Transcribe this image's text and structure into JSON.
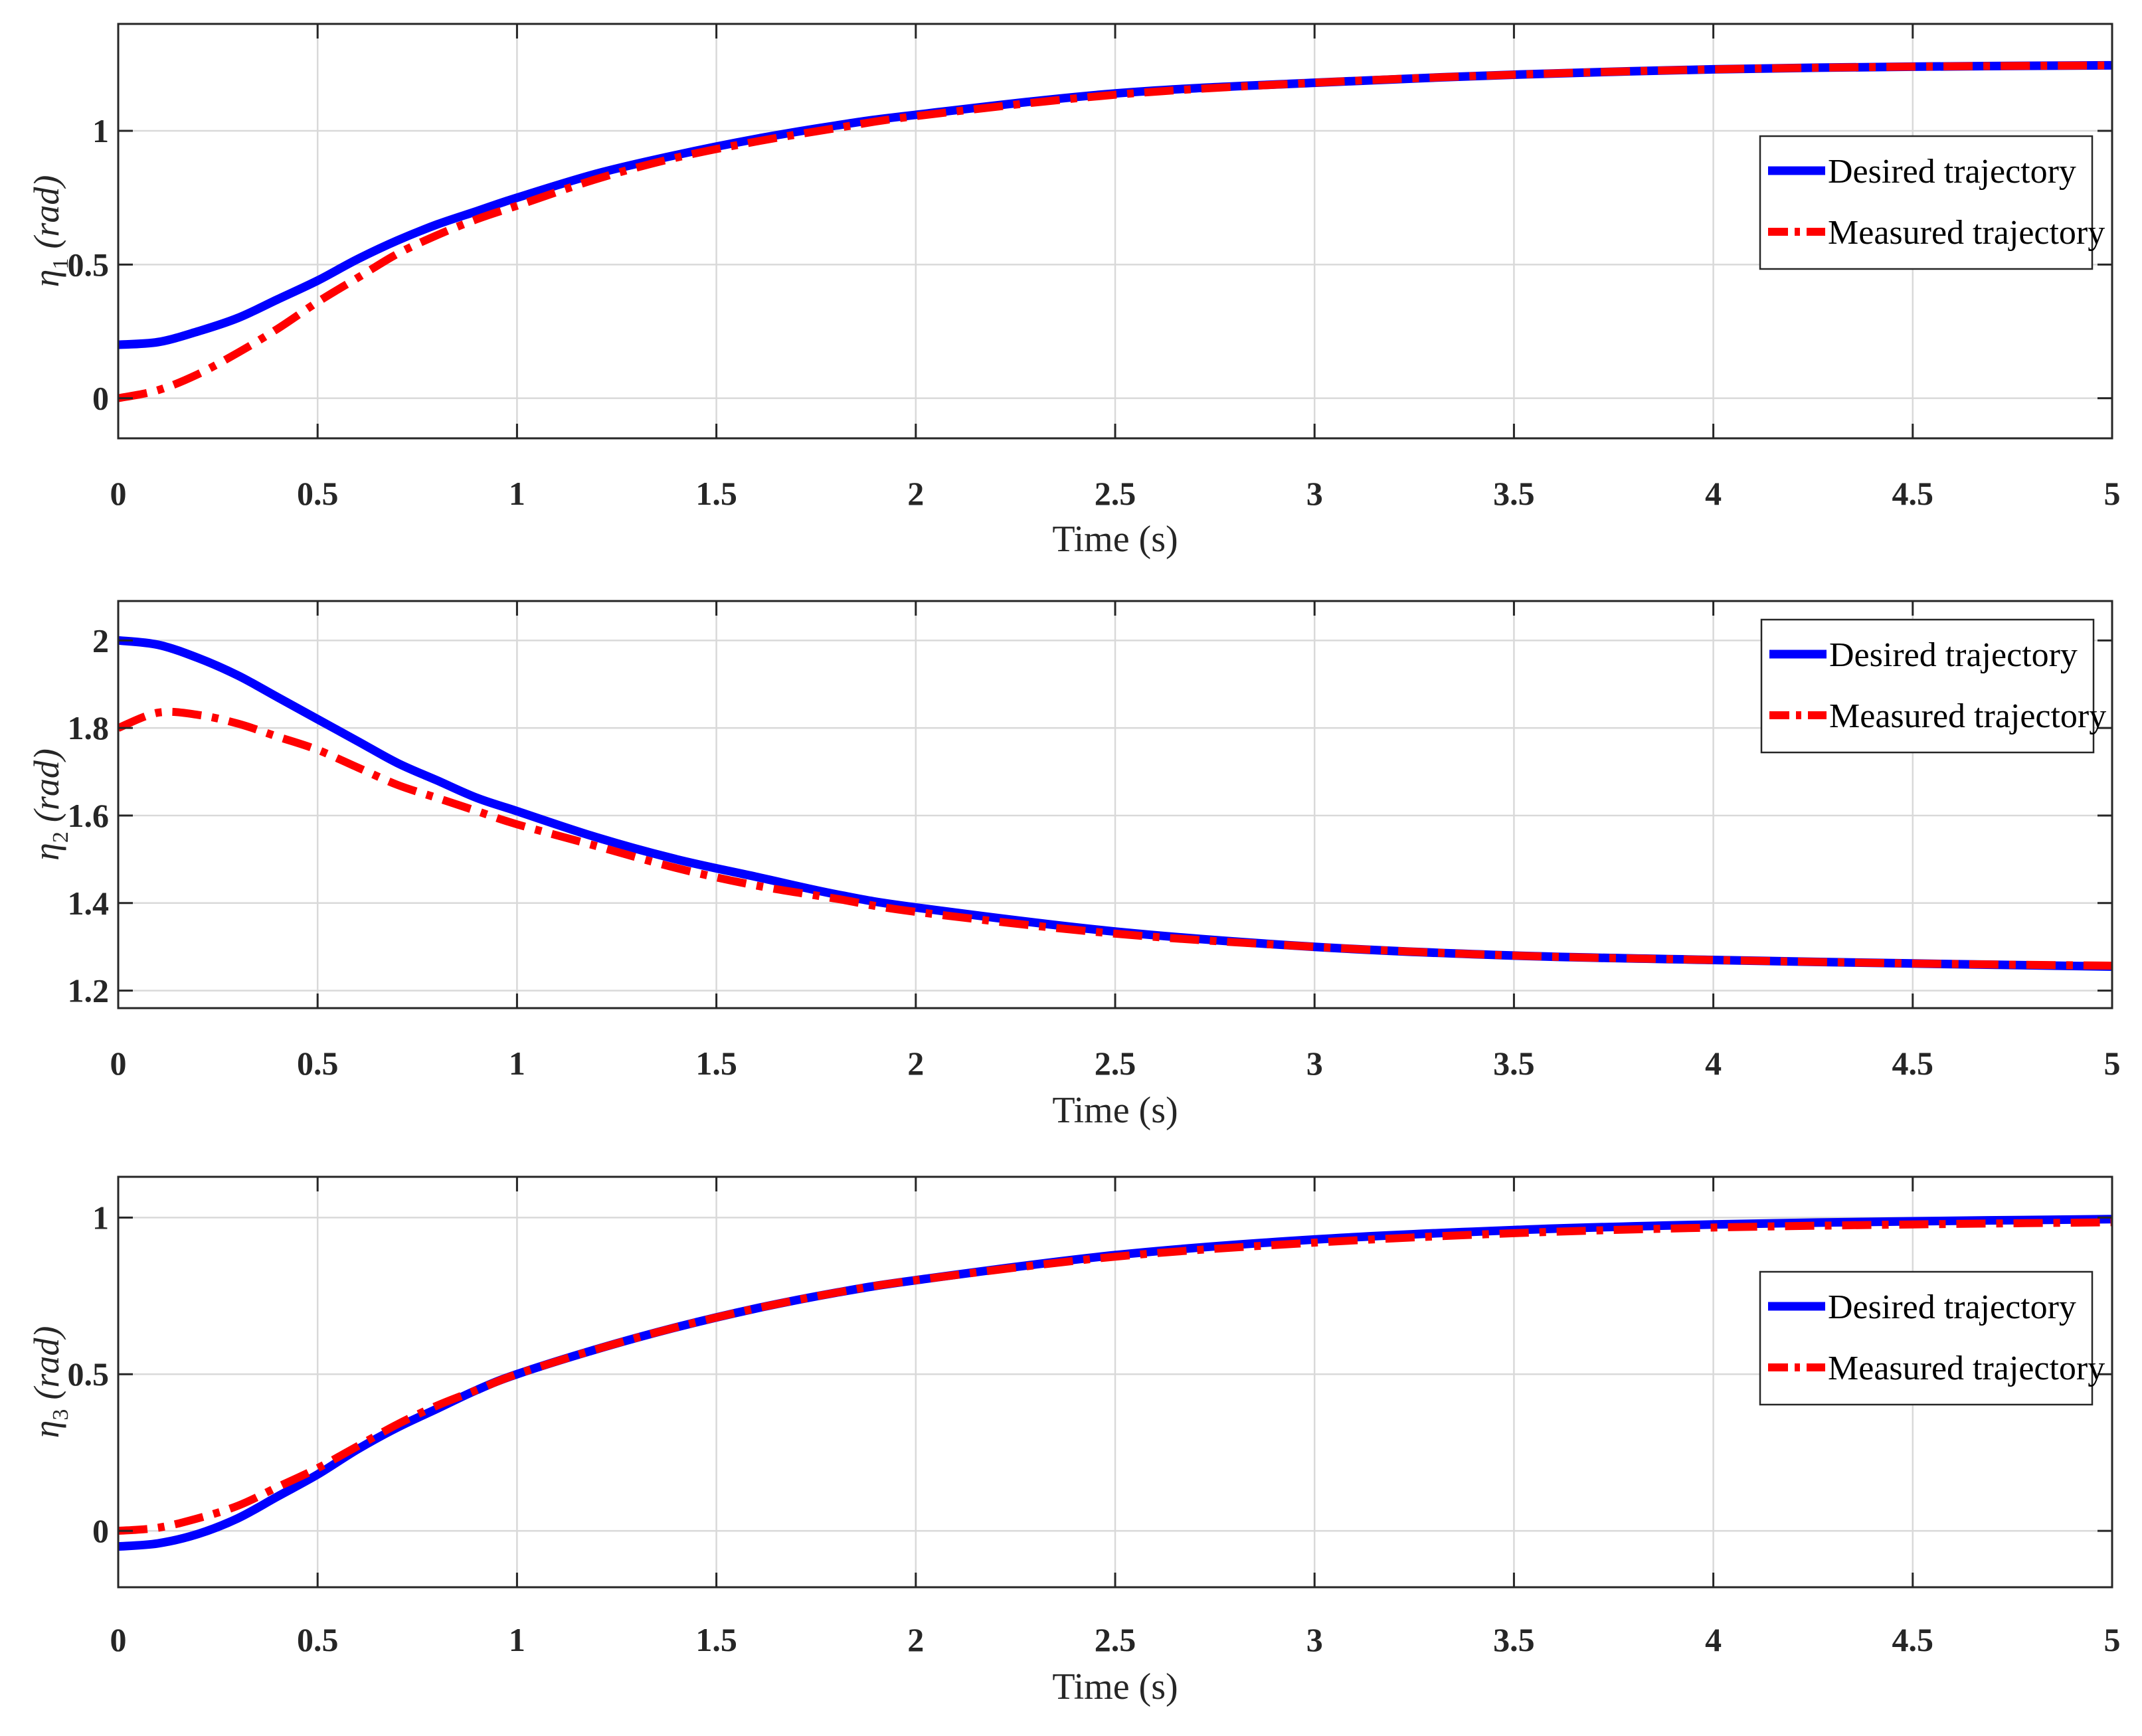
{
  "chart_data": [
    {
      "type": "line",
      "xlabel": "Time (s)",
      "ylabel": "η1 (rad)",
      "ylabel_symbol": "η",
      "ylabel_sub": "1",
      "ylabel_unit": "(rad)",
      "xlim": [
        0,
        5
      ],
      "ylim": [
        -0.15,
        1.4
      ],
      "xticks": [
        0,
        0.5,
        1,
        1.5,
        2,
        2.5,
        3,
        3.5,
        4,
        4.5,
        5
      ],
      "xtick_labels": [
        "0",
        "0.5",
        "1",
        "1.5",
        "2",
        "2.5",
        "3",
        "3.5",
        "4",
        "4.5",
        "5"
      ],
      "yticks": [
        0,
        0.5,
        1
      ],
      "ytick_labels": [
        "0",
        "0.5",
        "1"
      ],
      "grid": true,
      "legend_position": "right",
      "series": [
        {
          "name": "Desired trajectory",
          "style": "solid",
          "color": "#0000ff",
          "x": [
            0,
            0.1,
            0.2,
            0.3,
            0.4,
            0.5,
            0.6,
            0.7,
            0.8,
            0.9,
            1.0,
            1.2,
            1.4,
            1.6,
            1.8,
            2.0,
            2.5,
            3.0,
            3.5,
            4.0,
            4.5,
            5.0
          ],
          "y": [
            0.2,
            0.21,
            0.25,
            0.3,
            0.37,
            0.44,
            0.52,
            0.59,
            0.65,
            0.7,
            0.75,
            0.84,
            0.91,
            0.97,
            1.02,
            1.06,
            1.14,
            1.18,
            1.21,
            1.23,
            1.24,
            1.245
          ]
        },
        {
          "name": "Measured trajectory",
          "style": "dashdot",
          "color": "#ff0000",
          "x": [
            0,
            0.1,
            0.2,
            0.3,
            0.4,
            0.5,
            0.6,
            0.7,
            0.8,
            0.9,
            1.0,
            1.2,
            1.4,
            1.6,
            1.8,
            2.0,
            2.5,
            3.0,
            3.5,
            4.0,
            4.5,
            5.0
          ],
          "y": [
            0.0,
            0.03,
            0.09,
            0.17,
            0.26,
            0.36,
            0.45,
            0.54,
            0.61,
            0.67,
            0.72,
            0.82,
            0.9,
            0.96,
            1.01,
            1.055,
            1.135,
            1.18,
            1.21,
            1.23,
            1.24,
            1.245
          ]
        }
      ]
    },
    {
      "type": "line",
      "xlabel": "Time (s)",
      "ylabel": "η2 (rad)",
      "ylabel_symbol": "η",
      "ylabel_sub": "2",
      "ylabel_unit": "(rad)",
      "xlim": [
        0,
        5
      ],
      "ylim": [
        1.16,
        2.09
      ],
      "xticks": [
        0,
        0.5,
        1,
        1.5,
        2,
        2.5,
        3,
        3.5,
        4,
        4.5,
        5
      ],
      "xtick_labels": [
        "0",
        "0.5",
        "1",
        "1.5",
        "2",
        "2.5",
        "3",
        "3.5",
        "4",
        "4.5",
        "5"
      ],
      "yticks": [
        1.2,
        1.4,
        1.6,
        1.8,
        2.0
      ],
      "ytick_labels": [
        "1.2",
        "1.4",
        "1.6",
        "1.8",
        "2"
      ],
      "grid": true,
      "legend_position": "top-right",
      "series": [
        {
          "name": "Desired trajectory",
          "style": "solid",
          "color": "#0000ff",
          "x": [
            0,
            0.1,
            0.2,
            0.3,
            0.4,
            0.5,
            0.6,
            0.7,
            0.8,
            0.9,
            1.0,
            1.2,
            1.4,
            1.6,
            1.8,
            2.0,
            2.5,
            3.0,
            3.5,
            4.0,
            4.5,
            5.0
          ],
          "y": [
            2.0,
            1.99,
            1.96,
            1.92,
            1.87,
            1.82,
            1.77,
            1.72,
            1.68,
            1.64,
            1.61,
            1.55,
            1.5,
            1.46,
            1.42,
            1.39,
            1.335,
            1.3,
            1.28,
            1.27,
            1.262,
            1.255
          ]
        },
        {
          "name": "Measured trajectory",
          "style": "dashdot",
          "color": "#ff0000",
          "x": [
            0,
            0.1,
            0.2,
            0.3,
            0.4,
            0.5,
            0.6,
            0.7,
            0.8,
            0.9,
            1.0,
            1.2,
            1.4,
            1.6,
            1.8,
            2.0,
            2.5,
            3.0,
            3.5,
            4.0,
            4.5,
            5.0
          ],
          "y": [
            1.8,
            1.835,
            1.83,
            1.81,
            1.78,
            1.75,
            1.71,
            1.67,
            1.64,
            1.61,
            1.58,
            1.53,
            1.48,
            1.44,
            1.41,
            1.38,
            1.33,
            1.3,
            1.28,
            1.27,
            1.262,
            1.257
          ]
        }
      ]
    },
    {
      "type": "line",
      "xlabel": "Time (s)",
      "ylabel": "η3 (rad)",
      "ylabel_symbol": "η",
      "ylabel_sub": "3",
      "ylabel_unit": "(rad)",
      "xlim": [
        0,
        5
      ],
      "ylim": [
        -0.18,
        1.13
      ],
      "xticks": [
        0,
        0.5,
        1,
        1.5,
        2,
        2.5,
        3,
        3.5,
        4,
        4.5,
        5
      ],
      "xtick_labels": [
        "0",
        "0.5",
        "1",
        "1.5",
        "2",
        "2.5",
        "3",
        "3.5",
        "4",
        "4.5",
        "5"
      ],
      "yticks": [
        0,
        0.5,
        1
      ],
      "ytick_labels": [
        "0",
        "0.5",
        "1"
      ],
      "grid": true,
      "legend_position": "right",
      "series": [
        {
          "name": "Desired trajectory",
          "style": "solid",
          "color": "#0000ff",
          "x": [
            0,
            0.1,
            0.2,
            0.3,
            0.4,
            0.5,
            0.6,
            0.7,
            0.8,
            0.9,
            1.0,
            1.2,
            1.4,
            1.6,
            1.8,
            2.0,
            2.5,
            3.0,
            3.5,
            4.0,
            4.5,
            5.0
          ],
          "y": [
            -0.05,
            -0.04,
            -0.01,
            0.04,
            0.11,
            0.18,
            0.26,
            0.33,
            0.39,
            0.45,
            0.5,
            0.58,
            0.65,
            0.71,
            0.76,
            0.8,
            0.88,
            0.93,
            0.96,
            0.978,
            0.988,
            0.995
          ]
        },
        {
          "name": "Measured trajectory",
          "style": "dashdot",
          "color": "#ff0000",
          "x": [
            0,
            0.1,
            0.2,
            0.3,
            0.4,
            0.5,
            0.6,
            0.7,
            0.8,
            0.9,
            1.0,
            1.2,
            1.4,
            1.6,
            1.8,
            2.0,
            2.5,
            3.0,
            3.5,
            4.0,
            4.5,
            5.0
          ],
          "y": [
            0.0,
            0.01,
            0.04,
            0.08,
            0.14,
            0.2,
            0.27,
            0.34,
            0.4,
            0.45,
            0.5,
            0.58,
            0.65,
            0.71,
            0.76,
            0.8,
            0.875,
            0.92,
            0.95,
            0.968,
            0.978,
            0.985
          ]
        }
      ]
    }
  ]
}
